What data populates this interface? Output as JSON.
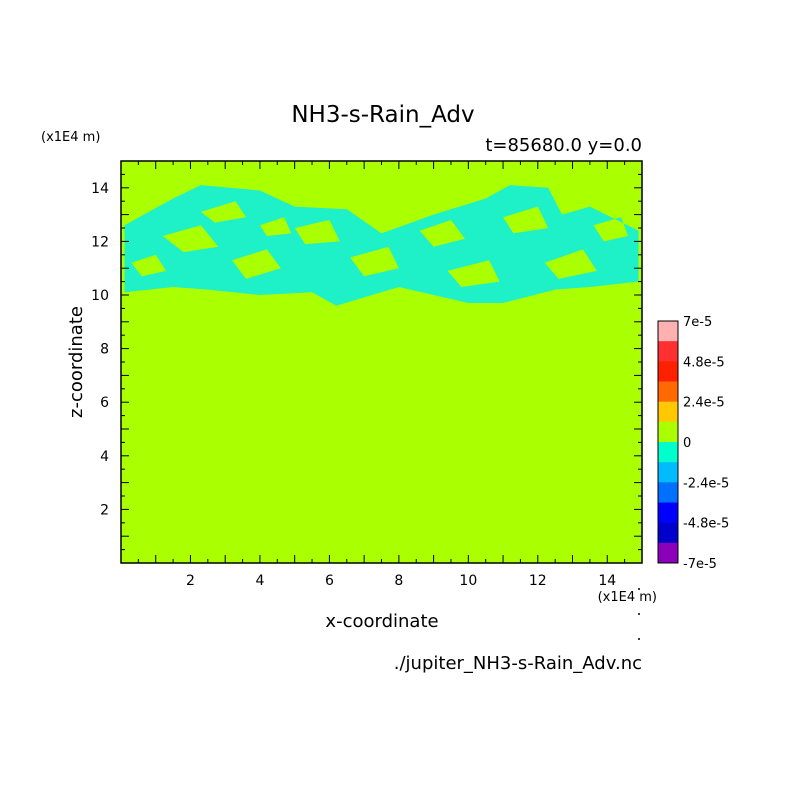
{
  "chart_data": {
    "type": "heatmap",
    "title": "NH3-s-Rain_Adv",
    "subtitle": "t=85680.0 y=0.0",
    "xlabel": "x-coordinate",
    "ylabel": "z-coordinate",
    "x_unit": "(x1E4 m)",
    "y_unit": "(x1E4 m)",
    "footer": "./jupiter_NH3-s-Rain_Adv.nc",
    "xlim": [
      0,
      15
    ],
    "ylim": [
      0,
      15
    ],
    "x_ticks": [
      2,
      4,
      6,
      8,
      10,
      12,
      14
    ],
    "y_ticks": [
      2,
      4,
      6,
      8,
      10,
      12,
      14
    ],
    "background_value": 0,
    "negative_region": {
      "z_range": [
        9.4,
        14.2
      ],
      "description_value": "-1.2e-5",
      "boundary_top": [
        [
          0.1,
          12.6
        ],
        [
          1.5,
          13.6
        ],
        [
          2.3,
          14.1
        ],
        [
          4.0,
          13.9
        ],
        [
          5.0,
          13.3
        ],
        [
          6.5,
          13.2
        ],
        [
          7.5,
          12.3
        ],
        [
          9.0,
          13.0
        ],
        [
          10.5,
          13.6
        ],
        [
          11.2,
          14.1
        ],
        [
          12.3,
          14.0
        ],
        [
          12.7,
          13.0
        ],
        [
          13.5,
          13.3
        ],
        [
          14.9,
          12.4
        ]
      ],
      "boundary_bottom": [
        [
          14.9,
          10.5
        ],
        [
          13.5,
          10.3
        ],
        [
          12.5,
          10.2
        ],
        [
          11.0,
          9.7
        ],
        [
          10.0,
          9.7
        ],
        [
          9.0,
          10.0
        ],
        [
          8.0,
          10.3
        ],
        [
          6.2,
          9.6
        ],
        [
          5.5,
          10.1
        ],
        [
          4.0,
          10.0
        ],
        [
          2.5,
          10.2
        ],
        [
          1.5,
          10.3
        ],
        [
          0.1,
          10.1
        ]
      ],
      "holes": [
        [
          [
            1.2,
            12.2
          ],
          [
            2.3,
            12.6
          ],
          [
            2.8,
            11.8
          ],
          [
            1.8,
            11.6
          ]
        ],
        [
          [
            3.2,
            11.3
          ],
          [
            4.2,
            11.7
          ],
          [
            4.6,
            11.0
          ],
          [
            3.6,
            10.6
          ]
        ],
        [
          [
            2.3,
            13.1
          ],
          [
            3.3,
            13.5
          ],
          [
            3.6,
            12.9
          ],
          [
            2.7,
            12.7
          ]
        ],
        [
          [
            5.0,
            12.5
          ],
          [
            6.0,
            12.8
          ],
          [
            6.3,
            12.0
          ],
          [
            5.3,
            11.9
          ]
        ],
        [
          [
            6.6,
            11.4
          ],
          [
            7.7,
            11.8
          ],
          [
            8.0,
            11.0
          ],
          [
            7.0,
            10.7
          ]
        ],
        [
          [
            8.6,
            12.4
          ],
          [
            9.5,
            12.8
          ],
          [
            9.9,
            12.1
          ],
          [
            9.0,
            11.8
          ]
        ],
        [
          [
            9.4,
            10.9
          ],
          [
            10.6,
            11.3
          ],
          [
            10.9,
            10.5
          ],
          [
            9.8,
            10.3
          ]
        ],
        [
          [
            11.0,
            12.9
          ],
          [
            12.0,
            13.3
          ],
          [
            12.3,
            12.5
          ],
          [
            11.3,
            12.3
          ]
        ],
        [
          [
            12.2,
            11.2
          ],
          [
            13.3,
            11.7
          ],
          [
            13.7,
            10.9
          ],
          [
            12.6,
            10.6
          ]
        ],
        [
          [
            13.6,
            12.6
          ],
          [
            14.4,
            12.9
          ],
          [
            14.6,
            12.2
          ],
          [
            13.9,
            12.0
          ]
        ],
        [
          [
            0.3,
            11.2
          ],
          [
            1.0,
            11.5
          ],
          [
            1.3,
            10.9
          ],
          [
            0.6,
            10.7
          ]
        ],
        [
          [
            4.0,
            12.6
          ],
          [
            4.7,
            12.9
          ],
          [
            4.9,
            12.3
          ],
          [
            4.2,
            12.2
          ]
        ]
      ]
    },
    "colorbar": {
      "labels": [
        "7e-5",
        "4.8e-5",
        "2.4e-5",
        "0",
        "-2.4e-5",
        "-4.8e-5",
        "-7e-5"
      ],
      "colors": [
        "#ffb0b0",
        "#ff3030",
        "#ff2000",
        "#ff6a00",
        "#ffc800",
        "#aaff00",
        "#00ffcc",
        "#00bcff",
        "#0070ff",
        "#0000ff",
        "#0000cc",
        "#8a00b8"
      ],
      "fill_positive": "#aaff00",
      "fill_negative": "#1ef0c8"
    }
  }
}
